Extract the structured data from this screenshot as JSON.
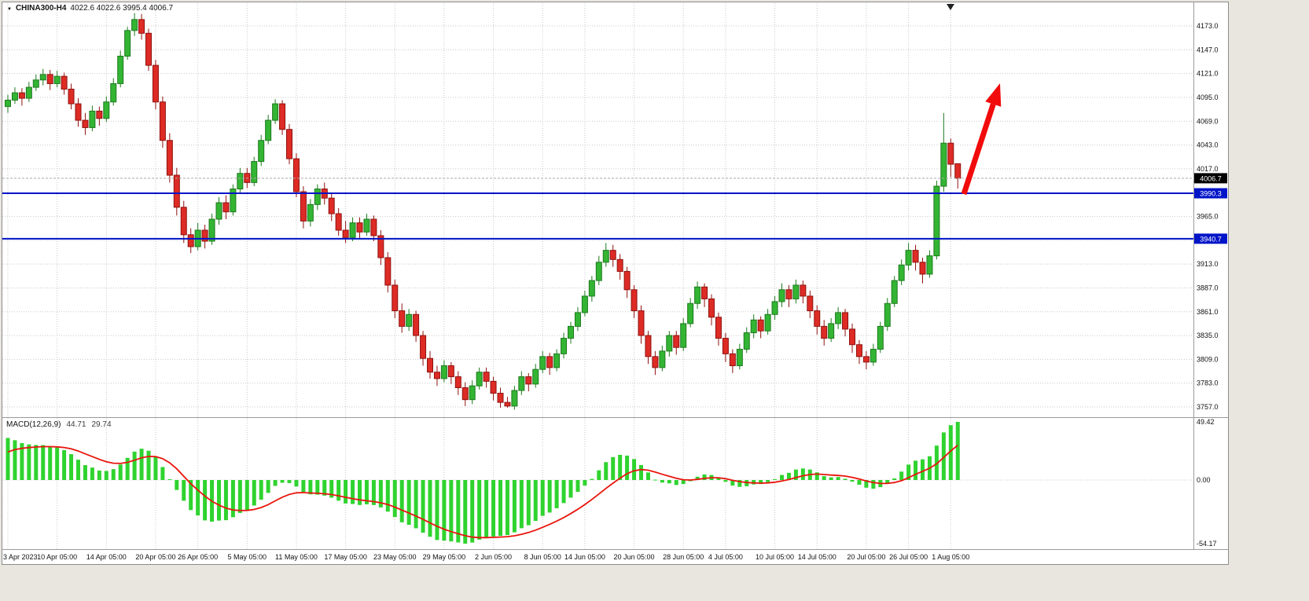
{
  "header": {
    "symbol_timeframe": "CHINA300-H4",
    "ohlc": "4022.6 4022.6 3995.4 4006.7"
  },
  "icons": {
    "symbol_dropdown": "▼"
  },
  "indicator": {
    "name": "MACD(12,26,9)",
    "value_main": "44.71",
    "value_signal": "29.74"
  },
  "price_axis": {
    "tick_labels": [
      "4173.0",
      "4147.0",
      "4121.0",
      "4095.0",
      "4069.0",
      "4043.0",
      "4017.0",
      "3991.0",
      "3965.0",
      "3939.0",
      "3913.0",
      "3887.0",
      "3861.0",
      "3835.0",
      "3809.0",
      "3783.0",
      "3757.0"
    ],
    "current_price_label": "4006.7",
    "level_labels": [
      "3990.3",
      "3940.7"
    ]
  },
  "macd_axis": {
    "tick_labels": [
      "49.42",
      "0.00",
      "-54.17"
    ]
  },
  "colors": {
    "bull": "#33b533",
    "bull_border": "#1d7a1d",
    "bear": "#de2b25",
    "bear_border": "#8f120f",
    "macd_histogram": "#2fd32f",
    "macd_signal": "#e8150d",
    "level_line": "#0014c8",
    "current_price_bg": "#000000",
    "arrow": "#f10b0b",
    "grid": "#c9c9c9"
  },
  "chart_data": {
    "type": "candlestick",
    "symbol": "CHINA300",
    "timeframe": "H4",
    "title": "CHINA300-H4 4022.6 4022.6 3995.4 4006.7",
    "ylim": [
      3757,
      4173
    ],
    "price_tick_step": 26,
    "levels": [
      3990.3,
      3940.7
    ],
    "current_price": 4006.7,
    "indicator": {
      "type": "MACD",
      "fast": 12,
      "slow": 26,
      "signal": 9,
      "current_macd": 44.71,
      "current_signal": 29.74,
      "axis_max": 49.42,
      "axis_min": -54.17
    },
    "annotations": [
      {
        "type": "arrow",
        "direction": "up-right",
        "meaning": "bullish-projection"
      }
    ],
    "time_labels": [
      {
        "label": "3 Apr 2023",
        "index": 0
      },
      {
        "label": "10 Apr 05:00",
        "index": 7
      },
      {
        "label": "14 Apr 05:00",
        "index": 14
      },
      {
        "label": "20 Apr 05:00",
        "index": 21
      },
      {
        "label": "26 Apr 05:00",
        "index": 27
      },
      {
        "label": "5 May 05:00",
        "index": 34
      },
      {
        "label": "11 May 05:00",
        "index": 41
      },
      {
        "label": "17 May 05:00",
        "index": 48
      },
      {
        "label": "23 May 05:00",
        "index": 55
      },
      {
        "label": "29 May 05:00",
        "index": 62
      },
      {
        "label": "2 Jun 05:00",
        "index": 69
      },
      {
        "label": "8 Jun 05:00",
        "index": 76
      },
      {
        "label": "14 Jun 05:00",
        "index": 82
      },
      {
        "label": "20 Jun 05:00",
        "index": 89
      },
      {
        "label": "28 Jun 05:00",
        "index": 96
      },
      {
        "label": "4 Jul 05:00",
        "index": 102
      },
      {
        "label": "10 Jul 05:00",
        "index": 109
      },
      {
        "label": "14 Jul 05:00",
        "index": 115
      },
      {
        "label": "20 Jul 05:00",
        "index": 122
      },
      {
        "label": "26 Jul 05:00",
        "index": 128
      },
      {
        "label": "1 Aug 05:00",
        "index": 134
      }
    ],
    "candles": [
      [
        4085,
        4098,
        4078,
        4092
      ],
      [
        4092,
        4106,
        4088,
        4100
      ],
      [
        4100,
        4105,
        4086,
        4094
      ],
      [
        4094,
        4112,
        4090,
        4106
      ],
      [
        4106,
        4120,
        4102,
        4114
      ],
      [
        4114,
        4126,
        4108,
        4120
      ],
      [
        4120,
        4125,
        4103,
        4110
      ],
      [
        4110,
        4124,
        4106,
        4118
      ],
      [
        4118,
        4122,
        4098,
        4104
      ],
      [
        4104,
        4110,
        4082,
        4088
      ],
      [
        4088,
        4094,
        4063,
        4070
      ],
      [
        4070,
        4078,
        4054,
        4062
      ],
      [
        4062,
        4086,
        4058,
        4080
      ],
      [
        4080,
        4085,
        4064,
        4072
      ],
      [
        4072,
        4096,
        4068,
        4090
      ],
      [
        4090,
        4116,
        4086,
        4110
      ],
      [
        4110,
        4146,
        4106,
        4140
      ],
      [
        4140,
        4172,
        4136,
        4168
      ],
      [
        4168,
        4187,
        4162,
        4180
      ],
      [
        4180,
        4186,
        4158,
        4165
      ],
      [
        4165,
        4170,
        4124,
        4130
      ],
      [
        4130,
        4136,
        4082,
        4090
      ],
      [
        4090,
        4096,
        4040,
        4048
      ],
      [
        4048,
        4056,
        4002,
        4010
      ],
      [
        4010,
        4018,
        3966,
        3975
      ],
      [
        3975,
        3982,
        3936,
        3945
      ],
      [
        3945,
        3952,
        3925,
        3932
      ],
      [
        3932,
        3958,
        3928,
        3950
      ],
      [
        3950,
        3956,
        3930,
        3938
      ],
      [
        3938,
        3968,
        3934,
        3962
      ],
      [
        3962,
        3986,
        3956,
        3980
      ],
      [
        3980,
        3988,
        3962,
        3970
      ],
      [
        3970,
        4000,
        3966,
        3995
      ],
      [
        3995,
        4018,
        3990,
        4012
      ],
      [
        4012,
        4018,
        3996,
        4002
      ],
      [
        4002,
        4030,
        3998,
        4025
      ],
      [
        4025,
        4054,
        4020,
        4048
      ],
      [
        4048,
        4076,
        4044,
        4070
      ],
      [
        4070,
        4093,
        4066,
        4088
      ],
      [
        4088,
        4092,
        4054,
        4060
      ],
      [
        4060,
        4066,
        4022,
        4028
      ],
      [
        4028,
        4034,
        3986,
        3992
      ],
      [
        3992,
        3998,
        3952,
        3960
      ],
      [
        3960,
        3984,
        3954,
        3978
      ],
      [
        3978,
        4000,
        3972,
        3995
      ],
      [
        3995,
        4002,
        3978,
        3985
      ],
      [
        3985,
        3990,
        3960,
        3968
      ],
      [
        3968,
        3974,
        3944,
        3950
      ],
      [
        3950,
        3960,
        3936,
        3942
      ],
      [
        3942,
        3964,
        3938,
        3958
      ],
      [
        3958,
        3964,
        3940,
        3948
      ],
      [
        3948,
        3968,
        3944,
        3962
      ],
      [
        3962,
        3966,
        3938,
        3944
      ],
      [
        3944,
        3950,
        3912,
        3920
      ],
      [
        3920,
        3926,
        3882,
        3890
      ],
      [
        3890,
        3896,
        3854,
        3862
      ],
      [
        3862,
        3870,
        3838,
        3845
      ],
      [
        3845,
        3864,
        3840,
        3858
      ],
      [
        3858,
        3862,
        3828,
        3835
      ],
      [
        3835,
        3840,
        3802,
        3810
      ],
      [
        3810,
        3818,
        3788,
        3795
      ],
      [
        3795,
        3802,
        3780,
        3788
      ],
      [
        3788,
        3808,
        3784,
        3802
      ],
      [
        3802,
        3806,
        3782,
        3790
      ],
      [
        3790,
        3796,
        3770,
        3778
      ],
      [
        3778,
        3784,
        3758,
        3765
      ],
      [
        3765,
        3786,
        3760,
        3780
      ],
      [
        3780,
        3800,
        3776,
        3795
      ],
      [
        3795,
        3800,
        3778,
        3785
      ],
      [
        3785,
        3790,
        3764,
        3772
      ],
      [
        3772,
        3778,
        3756,
        3762
      ],
      [
        3762,
        3768,
        3756,
        3758
      ],
      [
        3758,
        3780,
        3754,
        3775
      ],
      [
        3775,
        3796,
        3770,
        3790
      ],
      [
        3790,
        3794,
        3774,
        3782
      ],
      [
        3782,
        3804,
        3778,
        3798
      ],
      [
        3798,
        3818,
        3794,
        3812
      ],
      [
        3812,
        3816,
        3792,
        3800
      ],
      [
        3800,
        3820,
        3796,
        3815
      ],
      [
        3815,
        3838,
        3810,
        3832
      ],
      [
        3832,
        3850,
        3826,
        3845
      ],
      [
        3845,
        3866,
        3840,
        3860
      ],
      [
        3860,
        3884,
        3856,
        3878
      ],
      [
        3878,
        3900,
        3872,
        3895
      ],
      [
        3895,
        3922,
        3890,
        3915
      ],
      [
        3915,
        3936,
        3910,
        3928
      ],
      [
        3928,
        3934,
        3910,
        3918
      ],
      [
        3918,
        3924,
        3896,
        3905
      ],
      [
        3905,
        3910,
        3876,
        3885
      ],
      [
        3885,
        3890,
        3854,
        3862
      ],
      [
        3862,
        3868,
        3826,
        3835
      ],
      [
        3835,
        3840,
        3804,
        3812
      ],
      [
        3812,
        3818,
        3792,
        3800
      ],
      [
        3800,
        3824,
        3796,
        3818
      ],
      [
        3818,
        3840,
        3812,
        3835
      ],
      [
        3835,
        3840,
        3814,
        3822
      ],
      [
        3822,
        3854,
        3818,
        3848
      ],
      [
        3848,
        3876,
        3844,
        3870
      ],
      [
        3870,
        3894,
        3864,
        3888
      ],
      [
        3888,
        3892,
        3866,
        3875
      ],
      [
        3875,
        3880,
        3846,
        3855
      ],
      [
        3855,
        3860,
        3824,
        3832
      ],
      [
        3832,
        3838,
        3806,
        3815
      ],
      [
        3815,
        3820,
        3794,
        3802
      ],
      [
        3802,
        3826,
        3798,
        3820
      ],
      [
        3820,
        3844,
        3816,
        3838
      ],
      [
        3838,
        3858,
        3832,
        3852
      ],
      [
        3852,
        3856,
        3832,
        3840
      ],
      [
        3840,
        3864,
        3836,
        3858
      ],
      [
        3858,
        3878,
        3852,
        3872
      ],
      [
        3872,
        3892,
        3866,
        3885
      ],
      [
        3885,
        3890,
        3866,
        3875
      ],
      [
        3875,
        3896,
        3870,
        3890
      ],
      [
        3890,
        3895,
        3870,
        3878
      ],
      [
        3878,
        3884,
        3854,
        3862
      ],
      [
        3862,
        3868,
        3836,
        3845
      ],
      [
        3845,
        3852,
        3824,
        3832
      ],
      [
        3832,
        3854,
        3828,
        3848
      ],
      [
        3848,
        3866,
        3842,
        3860
      ],
      [
        3860,
        3864,
        3834,
        3842
      ],
      [
        3842,
        3848,
        3816,
        3825
      ],
      [
        3825,
        3830,
        3804,
        3812
      ],
      [
        3812,
        3818,
        3798,
        3806
      ],
      [
        3806,
        3826,
        3802,
        3820
      ],
      [
        3820,
        3850,
        3816,
        3845
      ],
      [
        3845,
        3876,
        3840,
        3870
      ],
      [
        3870,
        3900,
        3866,
        3895
      ],
      [
        3895,
        3918,
        3890,
        3912
      ],
      [
        3912,
        3936,
        3906,
        3928
      ],
      [
        3928,
        3934,
        3906,
        3915
      ],
      [
        3915,
        3920,
        3892,
        3902
      ],
      [
        3902,
        3928,
        3898,
        3922
      ],
      [
        3922,
        4004,
        3918,
        3998
      ],
      [
        3998,
        4078,
        3992,
        4045
      ],
      [
        4045,
        4050,
        4008,
        4022
      ],
      [
        4022.6,
        4022.6,
        3995.4,
        4006.7
      ]
    ]
  }
}
